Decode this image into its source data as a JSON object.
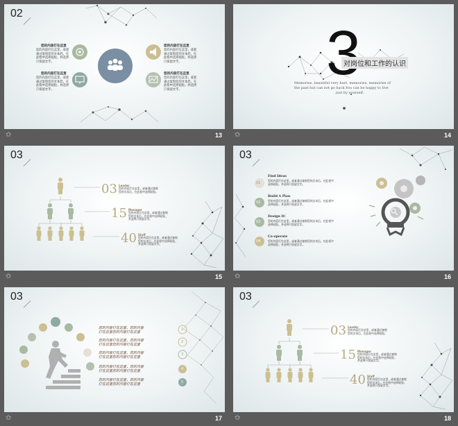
{
  "slides": [
    {
      "section": "02",
      "page": "13",
      "items": [
        {
          "title": "您的内容打在这里",
          "body": "您的内容打在这里，或者通过复制您的文本后，在此框中选择粘贴，并选择只保留文字。"
        },
        {
          "title": "您的内容打在这里",
          "body": "您的内容打在这里，或者通过复制您的文本后，在此框中选择粘贴，并选择只保留文字。"
        },
        {
          "title": "您的内容打在这里",
          "body": "您的内容打在这里，或者通过复制您的文本后，在此框中选择粘贴，并选择只保留文字。"
        },
        {
          "title": "您的内容打在这里",
          "body": "您的内容打在这里，或者通过复制您的文本后，在此框中选择粘贴，并选择只保留文字。"
        }
      ]
    },
    {
      "section": "3",
      "page": "14",
      "title": "对岗位和工作的认识",
      "quote_1": "Memories, beautiful very hurt, memories, memories of",
      "quote_2": "the past but can not go back.You can be happy to live",
      "quote_3": "just by yourself."
    },
    {
      "section": "03",
      "page": "15",
      "levels": [
        {
          "number": "03",
          "label": "Leader",
          "body": "您的内容打在这里，或者通过复制您的文本后，在此框中选择粘贴。"
        },
        {
          "number": "15",
          "label": "Manager",
          "body": "您的内容打在这里，或者通过复制您的文本后，在此框中选择粘贴，并选择只保留文字。"
        },
        {
          "number": "40",
          "label": "Staff",
          "body": "您的内容打在这里，或者通过复制您的文本后，在此框中选择粘贴，并选择只保留文字。"
        }
      ]
    },
    {
      "section": "03",
      "page": "16",
      "steps": [
        {
          "number": "01",
          "title": "Find Ideas",
          "body": "您的内容打在这里，或者通过复制您的文本后，在此框中选择粘贴，并选择只保留文字。"
        },
        {
          "number": "02",
          "title": "Build A Plan",
          "body": "您的内容打在这里，或者通过复制您的文本后，在此框中选择粘贴，并选择只保留文字。"
        },
        {
          "number": "03",
          "title": "Design It!",
          "body": "您的内容打在这里，或者通过复制您的文本后，在此框中选择粘贴，并选择只保留文字。"
        },
        {
          "number": "04",
          "title": "Co-operate",
          "body": "您的内容打在这里，或者通过复制您的文本后，在此框中选择粘贴，并选择只保留文字。"
        }
      ]
    },
    {
      "section": "03",
      "page": "17",
      "rows": [
        {
          "number": "1",
          "text_a": "您的内容打在这里，您的内容",
          "text_b": "打在这里您的内容打在这里"
        },
        {
          "number": "2",
          "text_a": "您的内容打在这里，您的内容",
          "text_b": "打在这里您的内容打在这里"
        },
        {
          "number": "3",
          "text_a": "您的内容打在这里，您的内容",
          "text_b": "打在这里您的内容打在这里"
        },
        {
          "number": "4",
          "text_a": "您的内容打在这里，您的内容",
          "text_b": "打在这里您的内容打在这里"
        },
        {
          "number": "5",
          "text_a": "您的内容打在这里，您的内容",
          "text_b": "打在这里您的内容打在这里"
        }
      ]
    },
    {
      "section": "03",
      "page": "18",
      "levels": [
        {
          "number": "03",
          "label": "Leader",
          "body": "您的内容打在这里，或者通过复制您的文本后，在此框中选择粘贴。"
        },
        {
          "number": "15",
          "label": "Manager",
          "body": "您的内容打在这里，或者通过复制您的文本后，在此框中选择粘贴，并选择只保留文字。"
        },
        {
          "number": "40",
          "label": "Staff",
          "body": "您的内容打在这里，或者通过复制您的文本后，在此框中选择粘贴，并选择只保留文字。"
        }
      ]
    }
  ],
  "icons": {
    "footer": "star-icon",
    "center": "team-icon",
    "items": [
      "target-icon",
      "megaphone-icon",
      "monitor-icon",
      "chart-icon"
    ],
    "bulb": "lightbulb-gear-icon",
    "runner": "stair-climber-icon"
  },
  "colors": {
    "background": "#5b5b5b",
    "slate": "#7a8fa3",
    "sage": "#a9b9a2",
    "khaki": "#cbbf93",
    "teal": "#8fa9a4",
    "gray_figure": "#b0b0b0",
    "number_gold": "#b9a882"
  }
}
